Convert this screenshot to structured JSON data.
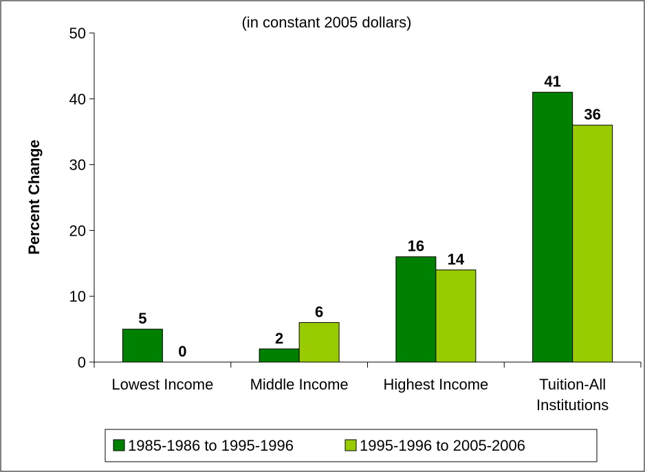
{
  "chart_data": {
    "type": "bar",
    "subtitle": "(in constant 2005 dollars)",
    "y_label": "Percent Change",
    "categories": [
      "Lowest Income",
      "Middle Income",
      "Highest Income",
      "Tuition-All Institutions"
    ],
    "series": [
      {
        "name": "1985-1986 to 1995-1996",
        "color": "#008000",
        "values": [
          5,
          2,
          16,
          41
        ]
      },
      {
        "name": "1995-1996 to 2005-2006",
        "color": "#99cc00",
        "values": [
          0,
          6,
          14,
          36
        ]
      }
    ],
    "ylim": [
      0,
      50
    ],
    "yticks": [
      0,
      10,
      20,
      30,
      40,
      50
    ],
    "grid": false,
    "legend": "bottom"
  }
}
